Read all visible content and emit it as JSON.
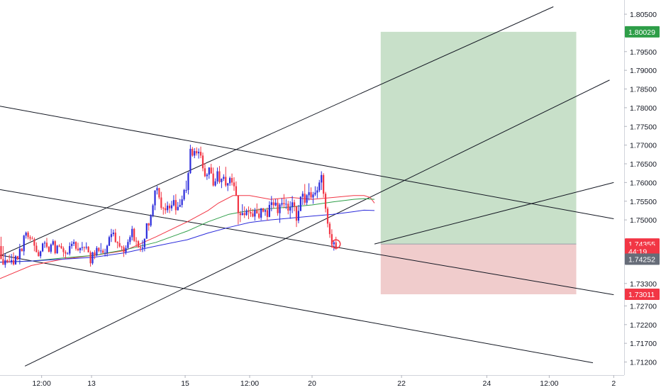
{
  "chart_data": {
    "type": "candlestick",
    "title": "",
    "xlabel": "",
    "ylabel": "",
    "ylim": [
      1.7085,
      1.8088
    ],
    "grid": false,
    "legend": "none",
    "y_ticks": [
      "1.80500",
      "1.79500",
      "1.79000",
      "1.78500",
      "1.78000",
      "1.77500",
      "1.77000",
      "1.76500",
      "1.76000",
      "1.75500",
      "1.75000",
      "1.73300",
      "1.72700",
      "1.72200",
      "1.71700",
      "1.71200"
    ],
    "x_ticks": [
      {
        "label": "12:00",
        "t": 20
      },
      {
        "label": "13",
        "t": 44
      },
      {
        "label": "15",
        "t": 89
      },
      {
        "label": "12:00",
        "t": 120
      },
      {
        "label": "20",
        "t": 150
      },
      {
        "label": "22",
        "t": 193
      },
      {
        "label": "24",
        "t": 234
      },
      {
        "label": "12:00",
        "t": 264
      },
      {
        "label": "2",
        "t": 295
      }
    ],
    "t_domain": [
      0,
      300
    ],
    "price_badges": [
      {
        "id": "tp",
        "value": "1.80029",
        "price": 1.80029,
        "color": "#2e9e48"
      },
      {
        "id": "entry",
        "value": "1.74355",
        "price": 1.74355,
        "color": "#f23645"
      },
      {
        "id": "countdown",
        "value": "44:19",
        "price": 1.74162,
        "color": "#f23645"
      },
      {
        "id": "last",
        "value": "1.74252",
        "price": 1.7395,
        "color": "#666c78"
      },
      {
        "id": "sl",
        "value": "1.73011",
        "price": 1.73011,
        "color": "#f23645"
      }
    ],
    "position": {
      "t_start": 183,
      "t_end": 277,
      "entry": 1.74355,
      "target": 1.80029,
      "stop": 1.73011,
      "profit_color": "#c8e0c9",
      "loss_color": "#f0cccc"
    },
    "trendlines": [
      {
        "t1": 0,
        "p1": 1.74039,
        "t2": 266,
        "p2": 1.807,
        "color": "#131722"
      },
      {
        "t1": 12,
        "p1": 1.7109,
        "t2": 293,
        "p2": 1.7874,
        "color": "#131722"
      },
      {
        "t1": 180,
        "p1": 1.74355,
        "t2": 295,
        "p2": 1.76,
        "color": "#131722"
      },
      {
        "t1": 0,
        "p1": 1.7804,
        "t2": 295,
        "p2": 1.7503,
        "color": "#131722"
      },
      {
        "t1": 0,
        "p1": 1.7581,
        "t2": 295,
        "p2": 1.73,
        "color": "#131722"
      },
      {
        "t1": 0,
        "p1": 1.7406,
        "t2": 285,
        "p2": 1.7118,
        "color": "#131722"
      }
    ],
    "moving_averages": [
      {
        "color": "#f23645",
        "points": [
          [
            0,
            1.7343
          ],
          [
            15,
            1.7378
          ],
          [
            30,
            1.7395
          ],
          [
            45,
            1.7405
          ],
          [
            60,
            1.7418
          ],
          [
            75,
            1.7455
          ],
          [
            90,
            1.7495
          ],
          [
            100,
            1.7525
          ],
          [
            105,
            1.7545
          ],
          [
            112,
            1.7565
          ],
          [
            120,
            1.7565
          ],
          [
            130,
            1.7555
          ],
          [
            140,
            1.756
          ],
          [
            150,
            1.7555
          ],
          [
            160,
            1.756
          ],
          [
            170,
            1.7565
          ],
          [
            175,
            1.7565
          ],
          [
            178,
            1.756
          ],
          [
            180,
            1.7545
          ]
        ]
      },
      {
        "color": "#2e9e48",
        "points": [
          [
            0,
            1.7387
          ],
          [
            15,
            1.739
          ],
          [
            30,
            1.7398
          ],
          [
            45,
            1.7405
          ],
          [
            60,
            1.742
          ],
          [
            75,
            1.744
          ],
          [
            90,
            1.747
          ],
          [
            100,
            1.7495
          ],
          [
            110,
            1.7515
          ],
          [
            120,
            1.7525
          ],
          [
            130,
            1.753
          ],
          [
            140,
            1.7535
          ],
          [
            150,
            1.754
          ],
          [
            160,
            1.7548
          ],
          [
            170,
            1.7555
          ],
          [
            175,
            1.7557
          ],
          [
            180,
            1.7555
          ]
        ]
      },
      {
        "color": "#2b2bdb",
        "points": [
          [
            0,
            1.7387
          ],
          [
            15,
            1.739
          ],
          [
            30,
            1.7395
          ],
          [
            45,
            1.74
          ],
          [
            60,
            1.7412
          ],
          [
            75,
            1.743
          ],
          [
            90,
            1.7447
          ],
          [
            100,
            1.7465
          ],
          [
            110,
            1.748
          ],
          [
            120,
            1.7493
          ],
          [
            130,
            1.75
          ],
          [
            140,
            1.7505
          ],
          [
            150,
            1.751
          ],
          [
            160,
            1.7515
          ],
          [
            170,
            1.7522
          ],
          [
            175,
            1.7526
          ],
          [
            180,
            1.7525
          ]
        ]
      }
    ],
    "candle_colors": {
      "up": "#2b2bdb",
      "down": "#f23645"
    },
    "candles": [
      [
        1.743,
        1.7455,
        1.7405,
        1.7395
      ],
      [
        1.7395,
        1.743,
        1.738,
        1.738
      ],
      [
        1.738,
        1.741,
        1.7372,
        1.7392
      ],
      [
        1.7392,
        1.7395,
        1.7384,
        1.7388
      ],
      [
        1.7388,
        1.7407,
        1.7387,
        1.7387
      ],
      [
        1.7387,
        1.7409,
        1.7381,
        1.7392
      ],
      [
        1.7392,
        1.7413,
        1.7378,
        1.7381
      ],
      [
        1.7381,
        1.7406,
        1.738,
        1.7403
      ],
      [
        1.7403,
        1.7404,
        1.7392,
        1.7395
      ],
      [
        1.7395,
        1.7436,
        1.7381,
        1.7423
      ],
      [
        1.7423,
        1.7425,
        1.7416,
        1.7416
      ],
      [
        1.7416,
        1.746,
        1.7405,
        1.7458
      ],
      [
        1.7458,
        1.7469,
        1.745,
        1.7466
      ],
      [
        1.7466,
        1.747,
        1.7448,
        1.7454
      ],
      [
        1.7454,
        1.7459,
        1.7444,
        1.745
      ],
      [
        1.745,
        1.7456,
        1.7448,
        1.7448
      ],
      [
        1.7448,
        1.7453,
        1.7416,
        1.7431
      ],
      [
        1.7431,
        1.744,
        1.7413,
        1.7414
      ],
      [
        1.7414,
        1.742,
        1.7402,
        1.7403
      ],
      [
        1.7403,
        1.7418,
        1.7397,
        1.7416
      ],
      [
        1.7416,
        1.7439,
        1.7414,
        1.7437
      ],
      [
        1.7437,
        1.7444,
        1.7425,
        1.7439
      ],
      [
        1.7439,
        1.7452,
        1.7424,
        1.7428
      ],
      [
        1.7428,
        1.743,
        1.7413,
        1.7415
      ],
      [
        1.7415,
        1.7437,
        1.741,
        1.7434
      ],
      [
        1.7434,
        1.7448,
        1.7431,
        1.7443
      ],
      [
        1.7443,
        1.7446,
        1.7408,
        1.7411
      ],
      [
        1.7411,
        1.7433,
        1.7409,
        1.7431
      ],
      [
        1.7431,
        1.7435,
        1.7427,
        1.743
      ],
      [
        1.743,
        1.7438,
        1.7422,
        1.7424
      ],
      [
        1.7424,
        1.7429,
        1.7401,
        1.7414
      ],
      [
        1.7414,
        1.7419,
        1.7396,
        1.741
      ],
      [
        1.741,
        1.7414,
        1.7408,
        1.741
      ],
      [
        1.741,
        1.744,
        1.7405,
        1.743
      ],
      [
        1.743,
        1.7443,
        1.7423,
        1.7436
      ],
      [
        1.7436,
        1.7448,
        1.743,
        1.7441
      ],
      [
        1.7441,
        1.7443,
        1.7418,
        1.7423
      ],
      [
        1.7423,
        1.7439,
        1.7416,
        1.7419
      ],
      [
        1.7419,
        1.7426,
        1.7411,
        1.7425
      ],
      [
        1.7425,
        1.7441,
        1.7418,
        1.7427
      ],
      [
        1.7427,
        1.7429,
        1.7414,
        1.7426
      ],
      [
        1.7426,
        1.744,
        1.7421,
        1.7428
      ],
      [
        1.7428,
        1.743,
        1.7413,
        1.7413
      ],
      [
        1.7413,
        1.7418,
        1.7375,
        1.7384
      ],
      [
        1.7384,
        1.7415,
        1.738,
        1.7413
      ],
      [
        1.7413,
        1.7419,
        1.7395,
        1.7405
      ],
      [
        1.7405,
        1.743,
        1.7403,
        1.7425
      ],
      [
        1.7425,
        1.7427,
        1.7413,
        1.7417
      ],
      [
        1.7417,
        1.7438,
        1.741,
        1.7418
      ],
      [
        1.7418,
        1.7423,
        1.741,
        1.7412
      ],
      [
        1.7412,
        1.7423,
        1.7402,
        1.7412
      ],
      [
        1.7412,
        1.7434,
        1.7402,
        1.7431
      ],
      [
        1.7431,
        1.7458,
        1.743,
        1.7454
      ],
      [
        1.7454,
        1.7476,
        1.7441,
        1.7462
      ],
      [
        1.7462,
        1.7474,
        1.7456,
        1.7466
      ],
      [
        1.7466,
        1.7476,
        1.7439,
        1.7441
      ],
      [
        1.7441,
        1.7443,
        1.7424,
        1.7438
      ],
      [
        1.7438,
        1.7457,
        1.7426,
        1.7429
      ],
      [
        1.7429,
        1.7431,
        1.7419,
        1.7427
      ],
      [
        1.7427,
        1.7432,
        1.7401,
        1.7414
      ],
      [
        1.7414,
        1.7432,
        1.7407,
        1.7425
      ],
      [
        1.7425,
        1.7448,
        1.7421,
        1.7441
      ],
      [
        1.7441,
        1.7459,
        1.7434,
        1.7454
      ],
      [
        1.7454,
        1.7484,
        1.7445,
        1.7476
      ],
      [
        1.7476,
        1.7479,
        1.7441,
        1.7444
      ],
      [
        1.7444,
        1.7454,
        1.7428,
        1.7443
      ],
      [
        1.7443,
        1.7446,
        1.7425,
        1.7427
      ],
      [
        1.7427,
        1.7434,
        1.7415,
        1.7425
      ],
      [
        1.7425,
        1.7446,
        1.7414,
        1.7426
      ],
      [
        1.7426,
        1.745,
        1.7416,
        1.745
      ],
      [
        1.745,
        1.7491,
        1.7449,
        1.7491
      ],
      [
        1.7491,
        1.7492,
        1.7471,
        1.7485
      ],
      [
        1.7485,
        1.7515,
        1.7481,
        1.7512
      ],
      [
        1.7512,
        1.7543,
        1.7507,
        1.7539
      ],
      [
        1.7539,
        1.7579,
        1.7526,
        1.7579
      ],
      [
        1.7579,
        1.7591,
        1.7568,
        1.7585
      ],
      [
        1.7585,
        1.7586,
        1.7555,
        1.756
      ],
      [
        1.756,
        1.7575,
        1.7527,
        1.7532
      ],
      [
        1.7532,
        1.7535,
        1.7514,
        1.7531
      ],
      [
        1.7531,
        1.7545,
        1.7516,
        1.7526
      ],
      [
        1.7526,
        1.7549,
        1.7519,
        1.7538
      ],
      [
        1.7538,
        1.7544,
        1.7518,
        1.7531
      ],
      [
        1.7531,
        1.7551,
        1.7524,
        1.7539
      ],
      [
        1.7539,
        1.7566,
        1.7536,
        1.7553
      ],
      [
        1.7553,
        1.7569,
        1.7514,
        1.7526
      ],
      [
        1.7526,
        1.7548,
        1.7525,
        1.7535
      ],
      [
        1.7535,
        1.7556,
        1.7534,
        1.754
      ],
      [
        1.754,
        1.7565,
        1.7533,
        1.7555
      ],
      [
        1.7555,
        1.7583,
        1.7551,
        1.758
      ],
      [
        1.758,
        1.7605,
        1.7572,
        1.758
      ],
      [
        1.758,
        1.7629,
        1.7568,
        1.7625
      ],
      [
        1.7625,
        1.7701,
        1.7623,
        1.769
      ],
      [
        1.769,
        1.7695,
        1.7669,
        1.7672
      ],
      [
        1.7672,
        1.7692,
        1.7665,
        1.7684
      ],
      [
        1.7684,
        1.7694,
        1.7672,
        1.7678
      ],
      [
        1.7678,
        1.7691,
        1.7664,
        1.7682
      ],
      [
        1.7682,
        1.7696,
        1.7665,
        1.7672
      ],
      [
        1.7672,
        1.768,
        1.763,
        1.7638
      ],
      [
        1.7638,
        1.7652,
        1.7614,
        1.7617
      ],
      [
        1.7617,
        1.7625,
        1.7607,
        1.7621
      ],
      [
        1.7621,
        1.7641,
        1.761,
        1.764
      ],
      [
        1.764,
        1.765,
        1.7624,
        1.7624
      ],
      [
        1.7624,
        1.764,
        1.7589,
        1.7592
      ],
      [
        1.7592,
        1.7611,
        1.7589,
        1.7603
      ],
      [
        1.7603,
        1.764,
        1.7596,
        1.763
      ],
      [
        1.763,
        1.7644,
        1.7597,
        1.7601
      ],
      [
        1.7601,
        1.7611,
        1.7585,
        1.761
      ],
      [
        1.761,
        1.7622,
        1.7604,
        1.7615
      ],
      [
        1.7615,
        1.7642,
        1.7588,
        1.7592
      ],
      [
        1.7592,
        1.7599,
        1.7577,
        1.7598
      ],
      [
        1.7598,
        1.7616,
        1.7591,
        1.7612
      ],
      [
        1.7612,
        1.7624,
        1.7592,
        1.76
      ],
      [
        1.76,
        1.7614,
        1.7578,
        1.759
      ],
      [
        1.759,
        1.7603,
        1.7564,
        1.7565
      ],
      [
        1.7565,
        1.7566,
        1.7488,
        1.7518
      ],
      [
        1.7518,
        1.7524,
        1.7494,
        1.7513
      ],
      [
        1.7513,
        1.7542,
        1.7512,
        1.7518
      ],
      [
        1.7518,
        1.7536,
        1.7505,
        1.7513
      ],
      [
        1.7513,
        1.753,
        1.7511,
        1.7525
      ],
      [
        1.7525,
        1.7536,
        1.7502,
        1.7521
      ],
      [
        1.7521,
        1.7532,
        1.7508,
        1.7517
      ],
      [
        1.7517,
        1.7529,
        1.7507,
        1.7509
      ],
      [
        1.7509,
        1.7532,
        1.7498,
        1.7526
      ],
      [
        1.7526,
        1.7544,
        1.7517,
        1.7517
      ],
      [
        1.7517,
        1.7531,
        1.7502,
        1.7506
      ],
      [
        1.7506,
        1.7532,
        1.7499,
        1.7531
      ],
      [
        1.7531,
        1.7532,
        1.752,
        1.7522
      ],
      [
        1.7522,
        1.7528,
        1.7511,
        1.7526
      ],
      [
        1.7526,
        1.7533,
        1.7498,
        1.7508
      ],
      [
        1.7508,
        1.755,
        1.7507,
        1.754
      ],
      [
        1.754,
        1.7564,
        1.7523,
        1.7547
      ],
      [
        1.7547,
        1.7554,
        1.753,
        1.7539
      ],
      [
        1.7539,
        1.7556,
        1.7536,
        1.7546
      ],
      [
        1.7546,
        1.7556,
        1.7511,
        1.7518
      ],
      [
        1.7518,
        1.7545,
        1.7492,
        1.7541
      ],
      [
        1.7541,
        1.7558,
        1.7535,
        1.7545
      ],
      [
        1.7545,
        1.7569,
        1.7531,
        1.7542
      ],
      [
        1.7542,
        1.7556,
        1.7529,
        1.7543
      ],
      [
        1.7543,
        1.7551,
        1.7515,
        1.7525
      ],
      [
        1.7525,
        1.755,
        1.7503,
        1.7534
      ],
      [
        1.7534,
        1.7564,
        1.7518,
        1.7547
      ],
      [
        1.7547,
        1.7554,
        1.7523,
        1.7536
      ],
      [
        1.7536,
        1.7538,
        1.7481,
        1.7498
      ],
      [
        1.7498,
        1.754,
        1.7491,
        1.7524
      ],
      [
        1.7524,
        1.7563,
        1.7523,
        1.7562
      ],
      [
        1.7562,
        1.7577,
        1.754,
        1.757
      ],
      [
        1.757,
        1.7596,
        1.754,
        1.7546
      ],
      [
        1.7546,
        1.7569,
        1.7539,
        1.7566
      ],
      [
        1.7566,
        1.7598,
        1.7552,
        1.7574
      ],
      [
        1.7574,
        1.7587,
        1.7554,
        1.756
      ],
      [
        1.756,
        1.7575,
        1.7543,
        1.7568
      ],
      [
        1.7568,
        1.759,
        1.7564,
        1.7573
      ],
      [
        1.7573,
        1.7589,
        1.7558,
        1.7579
      ],
      [
        1.7579,
        1.7607,
        1.7574,
        1.76
      ],
      [
        1.76,
        1.763,
        1.758,
        1.762
      ],
      [
        1.762,
        1.7625,
        1.756,
        1.757
      ],
      [
        1.757,
        1.7575,
        1.752,
        1.753
      ],
      [
        1.753,
        1.7535,
        1.748,
        1.749
      ],
      [
        1.749,
        1.7495,
        1.7452,
        1.7462
      ],
      [
        1.7462,
        1.7475,
        1.7425,
        1.7435
      ],
      [
        1.7435,
        1.7445,
        1.7418,
        1.744
      ],
      [
        1.744,
        1.7455,
        1.742,
        1.7425
      ]
    ]
  }
}
